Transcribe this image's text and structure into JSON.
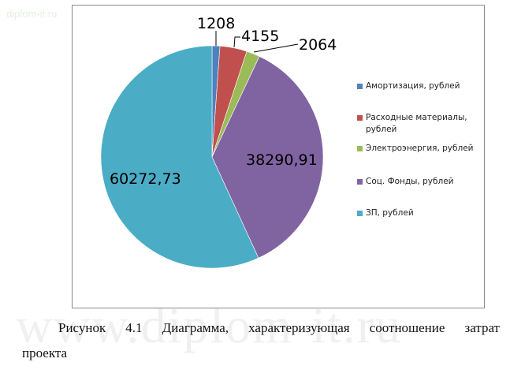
{
  "watermark": {
    "top": "diplom-it.ru",
    "big": "www.diplom-it.ru"
  },
  "chart_data": {
    "type": "pie",
    "title": "",
    "categories": [
      "Амортизация, рублей",
      "Расходные материалы, рублей",
      "Электроэнергия, рублей",
      "Соц. Фонды, рублей",
      "ЗП, рублей"
    ],
    "values": [
      1208,
      4155,
      2064,
      38290.91,
      60272.73
    ],
    "data_labels": [
      "1208",
      "4155",
      "2064",
      "38290,91",
      "60272,73"
    ],
    "colors": [
      "#4F81BD",
      "#C0504D",
      "#9BBB59",
      "#8064A2",
      "#4BACC6"
    ],
    "legend_position": "right",
    "start_angle": "12 o'clock, clockwise"
  },
  "legend": [
    {
      "line1": "Амортизация, рублей",
      "line2": ""
    },
    {
      "line1": "Расходные материалы,",
      "line2": "рублей"
    },
    {
      "line1": "Электроэнергия, рублей",
      "line2": ""
    },
    {
      "line1": "Соц. Фонды, рублей",
      "line2": ""
    },
    {
      "line1": "ЗП, рублей",
      "line2": ""
    }
  ],
  "caption": {
    "words": [
      "Рисунок",
      "4.1",
      "Диаграмма,",
      "характеризующая",
      "соотношение",
      "затрат"
    ],
    "line2": "проекта"
  }
}
